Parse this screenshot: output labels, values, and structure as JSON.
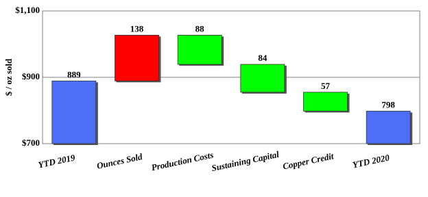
{
  "chart_data": {
    "type": "waterfall",
    "y_label": "$ / oz sold",
    "categories": [
      "YTD 2019",
      "Ounces Sold",
      "Production Costs",
      "Sustaining Capital",
      "Copper Credit",
      "YTD 2020"
    ],
    "values": [
      889,
      138,
      88,
      84,
      57,
      798
    ],
    "measure": [
      "total",
      "increase",
      "decrease",
      "decrease",
      "decrease",
      "total"
    ],
    "colors": [
      "#4f6ef7",
      "#ff0000",
      "#00ff00",
      "#00ff00",
      "#00ff00",
      "#4f6ef7"
    ],
    "ylim": [
      700,
      1100
    ],
    "yticks": [
      {
        "value": 700,
        "label": "$700"
      },
      {
        "value": 900,
        "label": "$900"
      },
      {
        "value": 1100,
        "label": "$1,100"
      }
    ],
    "grid": true
  }
}
